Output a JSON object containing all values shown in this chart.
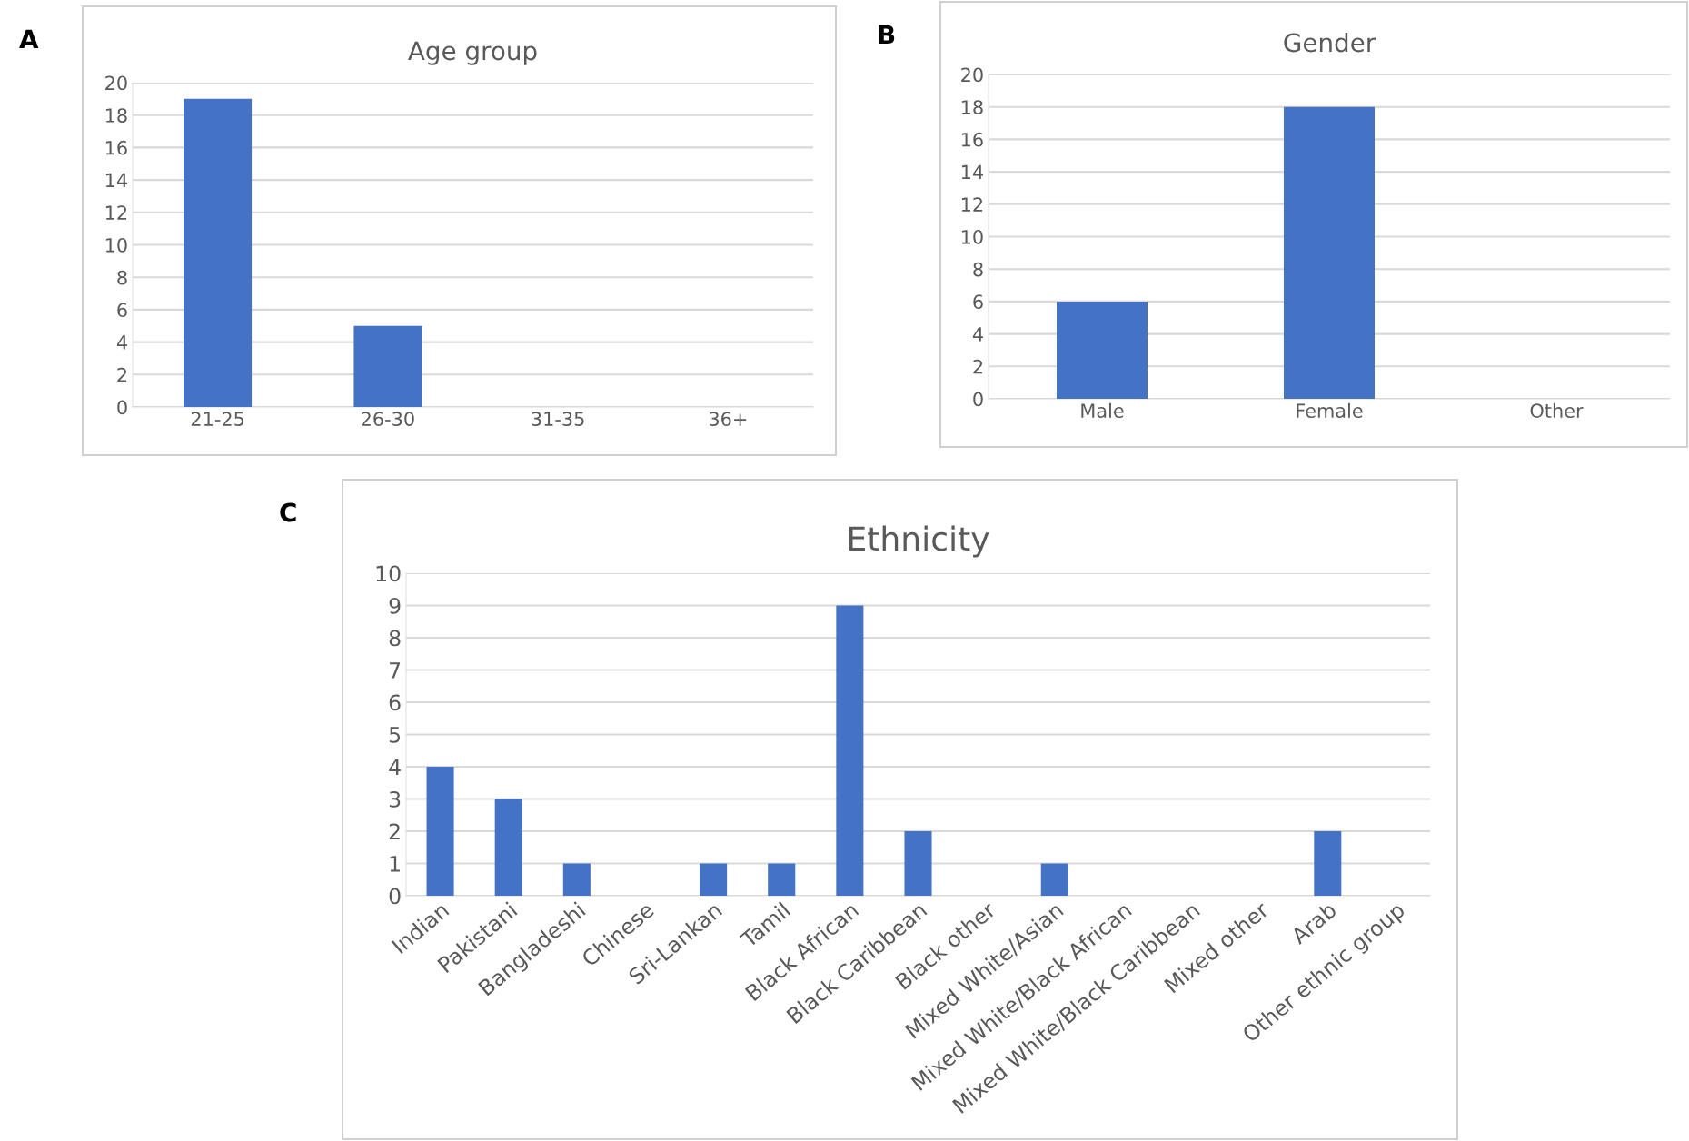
{
  "chart_data": [
    {
      "type": "bar",
      "title": "Age group",
      "annotations": [
        "A"
      ],
      "categories": [
        "21-25",
        "26-30",
        "31-35",
        "36+"
      ],
      "values": [
        19,
        5,
        0,
        0
      ],
      "color": "#4472c4",
      "ylim": [
        0,
        20
      ],
      "yticks": [
        0,
        2,
        4,
        6,
        8,
        10,
        12,
        14,
        16,
        18,
        20
      ],
      "grid": "y"
    },
    {
      "type": "bar",
      "title": "Gender",
      "annotations": [
        "B"
      ],
      "categories": [
        "Male",
        "Female",
        "Other"
      ],
      "values": [
        6,
        18,
        0
      ],
      "color": "#4472c4",
      "ylim": [
        0,
        20
      ],
      "yticks": [
        0,
        2,
        4,
        6,
        8,
        10,
        12,
        14,
        16,
        18,
        20
      ],
      "grid": "y"
    },
    {
      "type": "bar",
      "title": "Ethnicity",
      "annotations": [
        "C"
      ],
      "categories": [
        "Indian",
        "Pakistani",
        "Bangladeshi",
        "Chinese",
        "Sri-Lankan",
        "Tamil",
        "Black African",
        "Black Caribbean",
        "Black other",
        "Mixed White/Asian",
        "Mixed White/Black African",
        "Mixed White/Black Caribbean",
        "Mixed other",
        "Arab",
        "Other ethnic group"
      ],
      "values": [
        4,
        3,
        1,
        0,
        1,
        1,
        9,
        2,
        0,
        1,
        0,
        0,
        0,
        2,
        0
      ],
      "color": "#4472c4",
      "ylim": [
        0,
        10
      ],
      "yticks": [
        0,
        1,
        2,
        3,
        4,
        5,
        6,
        7,
        8,
        9,
        10
      ],
      "grid": "y"
    }
  ]
}
